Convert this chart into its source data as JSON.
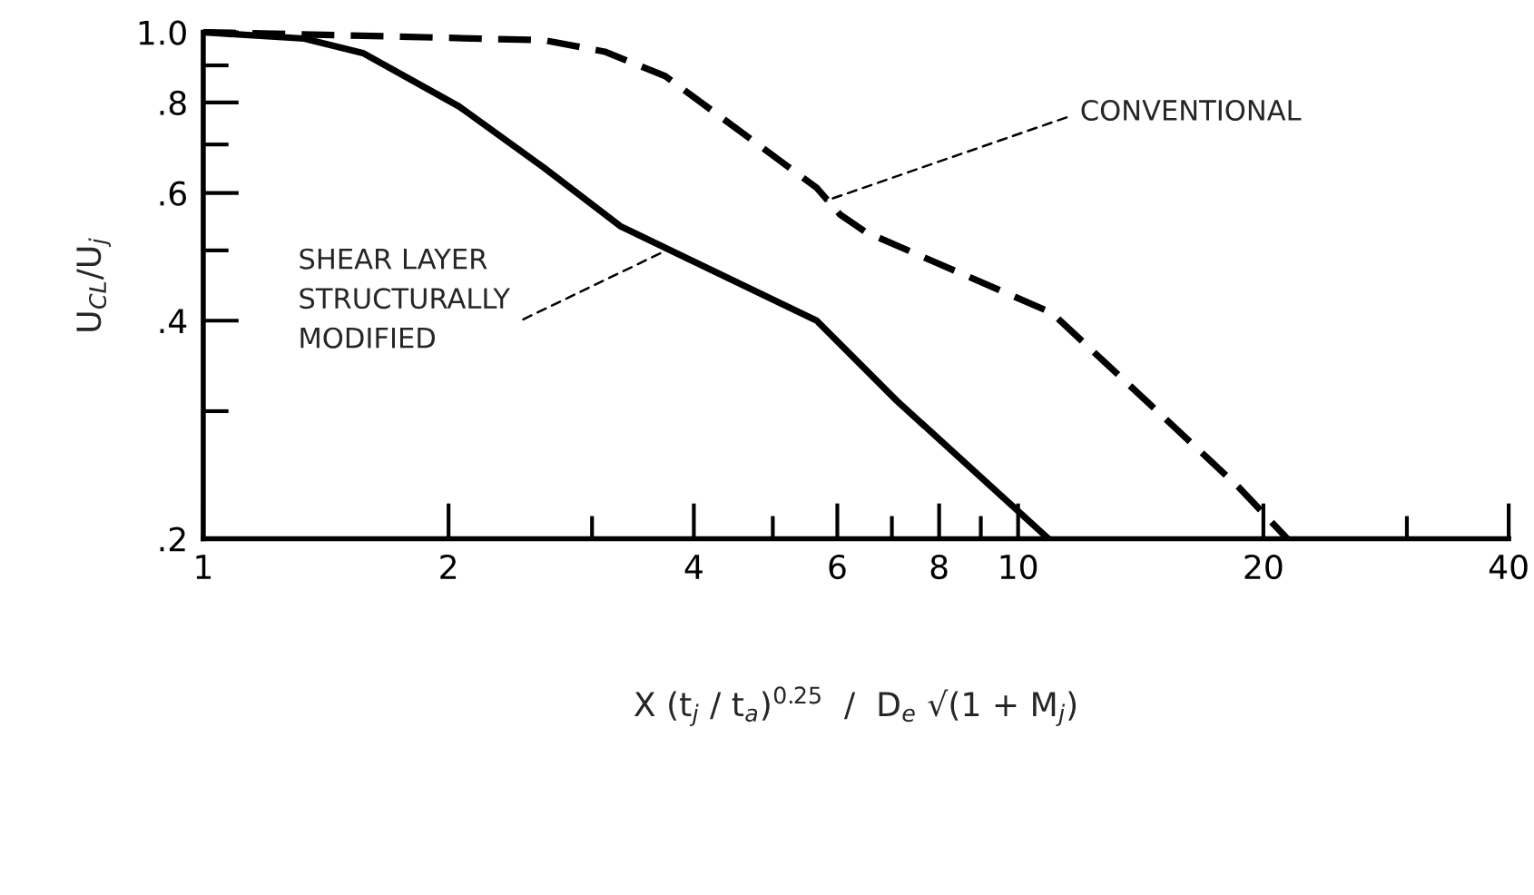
{
  "chart_data": {
    "type": "line",
    "xlabel": "X (t$_{j}$ / t$_{a}$)$^{0.25}$  /  D$_{e}$ √(1 + M$_{j}$)",
    "ylabel": "U$_{CL}$/U$_{j}$",
    "log": "xy",
    "xlim": [
      1,
      40
    ],
    "xticks": [
      1,
      2,
      {
        "value": 3,
        "label": null
      },
      4,
      {
        "value": 5,
        "label": null
      },
      6,
      {
        "value": 7,
        "label": null
      },
      8,
      {
        "value": 9,
        "label": null
      },
      10,
      20,
      {
        "value": 30,
        "label": null
      },
      40
    ],
    "ylim": [
      0.2,
      1.0
    ],
    "yticks": [
      {
        "value": 0.2,
        "label": ".2"
      },
      {
        "value": 0.3,
        "label": null
      },
      {
        "value": 0.4,
        "label": ".4"
      },
      {
        "value": 0.5,
        "label": null
      },
      {
        "value": 0.6,
        "label": ".6"
      },
      {
        "value": 0.7,
        "label": null
      },
      {
        "value": 0.8,
        "label": ".8"
      },
      {
        "value": 0.9,
        "label": null
      },
      {
        "value": 1.0,
        "label": "1.0"
      }
    ],
    "grid": false,
    "legend": false,
    "marker": "none",
    "series": [
      {
        "color": "#000000",
        "line_style": "solid",
        "x": [
          1,
          1.33,
          1.57,
          2.06,
          2.62,
          3.25,
          5.66,
          7.1,
          10.9
        ],
        "values": [
          1.0,
          0.98,
          0.936,
          0.79,
          0.65,
          0.54,
          0.4,
          0.31,
          0.2
        ]
      },
      {
        "color": "#000000",
        "line_style": "dashed",
        "x": [
          1,
          1.51,
          2.62,
          3.11,
          3.69,
          5.66,
          6.05,
          6.5,
          11.0,
          18.7,
          21.4
        ],
        "values": [
          1.0,
          0.99,
          0.975,
          0.94,
          0.87,
          0.61,
          0.56,
          0.53,
          0.41,
          0.235,
          0.2
        ]
      }
    ],
    "annotations": [
      {
        "text": "CONVENTIONAL",
        "x": 5.8,
        "y": 0.585
      },
      {
        "text": "SHEAR LAYER\nSTRUCTURALLY\nMODIFIED",
        "x": 3.7,
        "y": 0.5
      }
    ]
  }
}
